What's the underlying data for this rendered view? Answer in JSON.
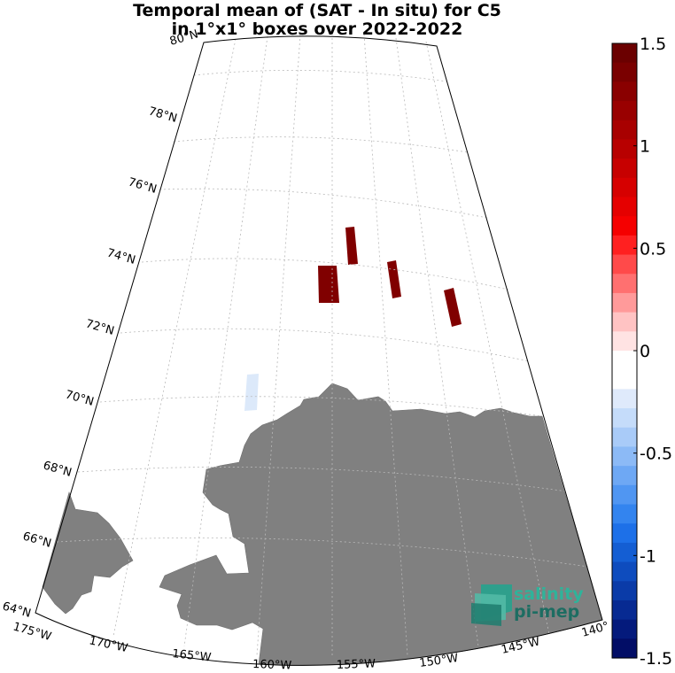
{
  "title": {
    "line1": "Temporal mean of (SAT - In situ) for C5",
    "line2": "in 1°x1° boxes over 2022-2022"
  },
  "latitude_labels": [
    "80°N",
    "78°N",
    "76°N",
    "74°N",
    "72°N",
    "70°N",
    "68°N",
    "66°N",
    "64°N"
  ],
  "longitude_labels": [
    "175°W",
    "170°W",
    "165°W",
    "160°W",
    "155°W",
    "150°W",
    "145°W",
    "140°"
  ],
  "colorbar": {
    "ticks": [
      "1.5",
      "1",
      "0.5",
      "0",
      "-0.5",
      "-1",
      "-1.5"
    ],
    "min": -1.5,
    "max": 1.5
  },
  "logo": {
    "line1": "salinity",
    "line2": "pi-mep"
  },
  "map_data": {
    "projection": "polar stereographic (Arctic)",
    "lon_range": [
      -175,
      -140
    ],
    "lat_range": [
      64,
      80
    ],
    "land_color": "#808080",
    "boxes": [
      {
        "lon": -157.5,
        "lat": 73.5,
        "value": 1.5
      },
      {
        "lon": -156.0,
        "lat": 74.5,
        "value": 1.5
      },
      {
        "lon": -153.0,
        "lat": 73.5,
        "value": 1.5
      },
      {
        "lon": -149.5,
        "lat": 72.5,
        "value": 1.5
      },
      {
        "lon": -160.5,
        "lat": 70.5,
        "value": -0.1
      }
    ]
  }
}
